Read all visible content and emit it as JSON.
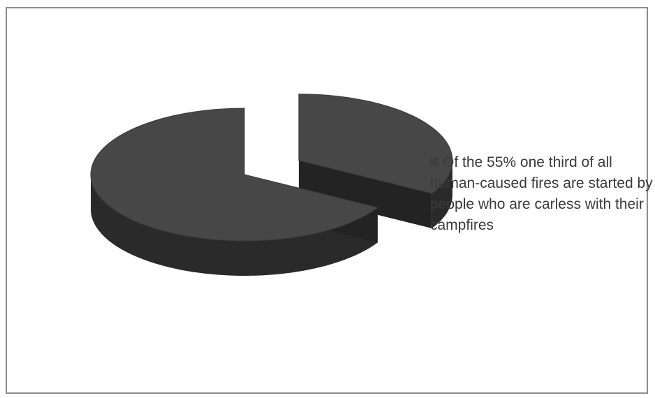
{
  "chart_data": {
    "type": "pie",
    "style": "3d-exploded",
    "title": "",
    "slices": [
      {
        "label": "",
        "value": 33.3
      },
      {
        "label": "Of the 55% one third of all human-caused fires are started by people who are carless with their campfires",
        "value": 66.7
      }
    ],
    "legend": {
      "position": "right",
      "entries": [
        "Of the 55% one third of all human-caused fires are started by people who are carless with their campfires"
      ]
    },
    "colors": {
      "top": "#474747",
      "side": "#2a2a2a",
      "legend_swatch": "#3f3f3f"
    }
  }
}
